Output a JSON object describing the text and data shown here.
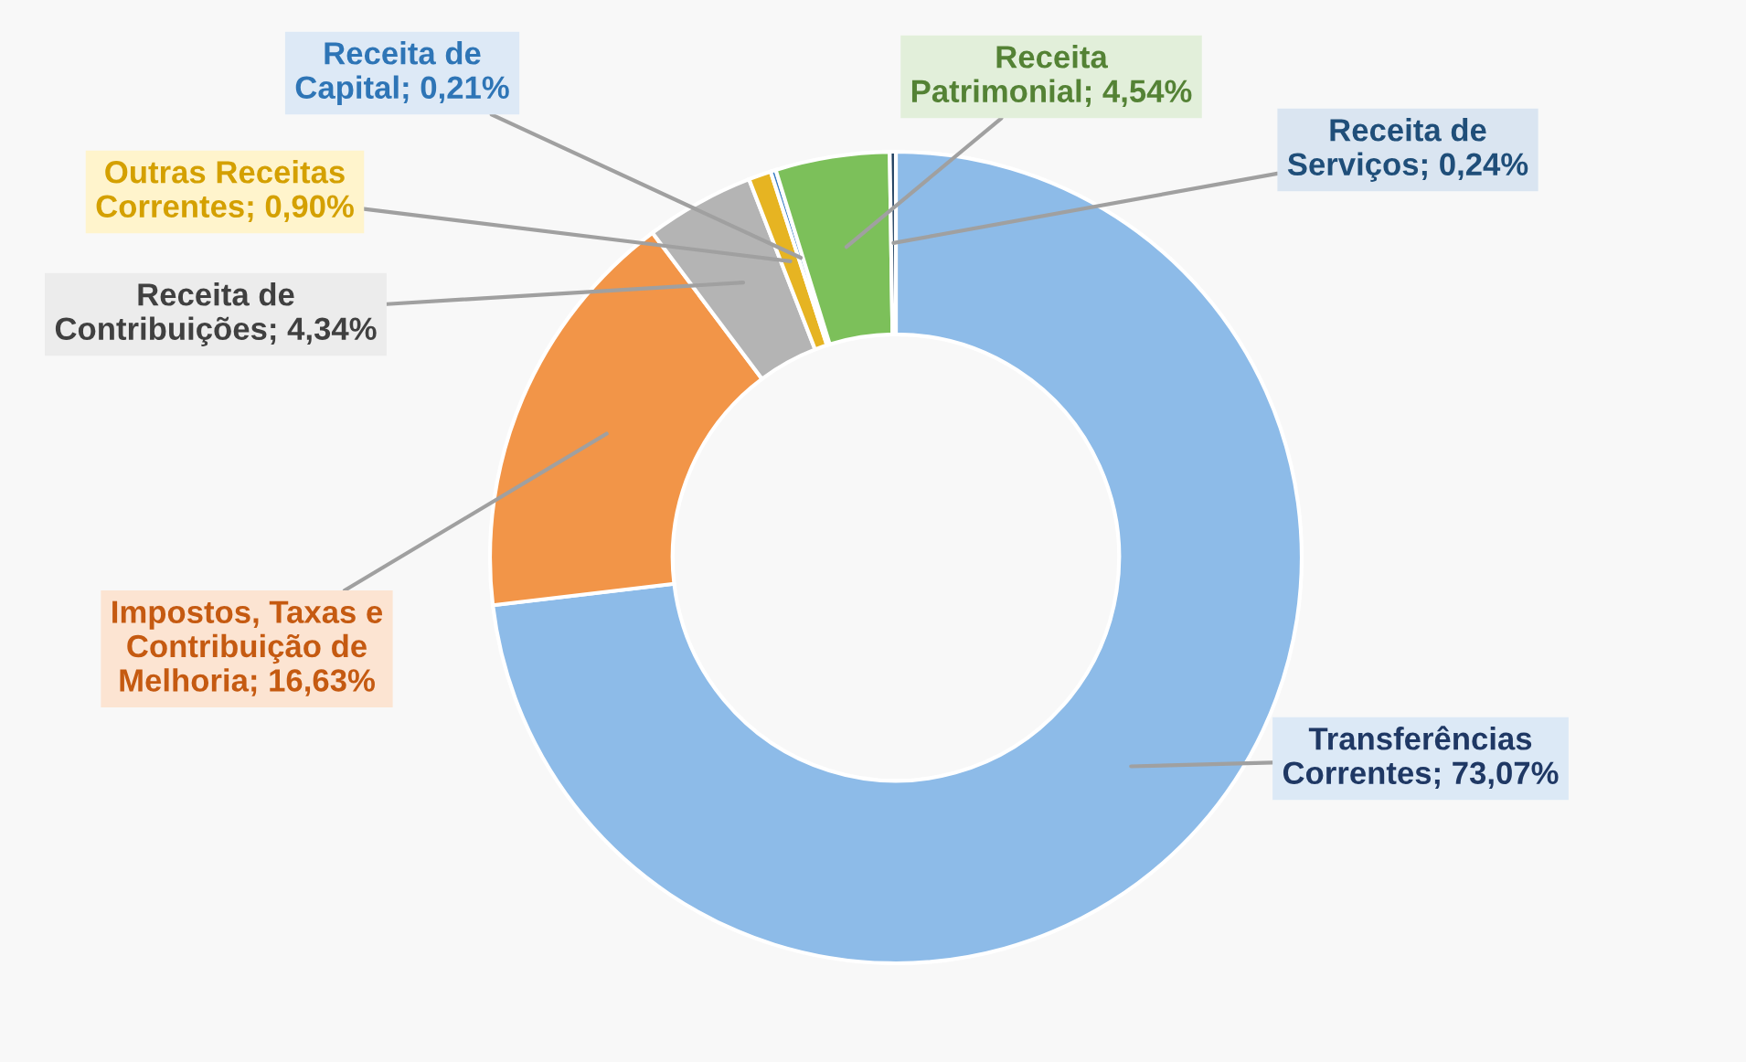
{
  "chart_data": {
    "type": "donut",
    "categories": [
      "Transferências Correntes",
      "Impostos, Taxas e Contribuição de Melhoria",
      "Receita de Contribuições",
      "Outras Receitas Correntes",
      "Receita de Capital",
      "Receita Patrimonial",
      "Receita de Serviços"
    ],
    "values": [
      73.07,
      16.63,
      4.34,
      0.9,
      0.21,
      4.54,
      0.24
    ],
    "value_labels": [
      "73,07%",
      "16,63%",
      "4,34%",
      "0,90%",
      "0,21%",
      "4,54%",
      "0,24%"
    ],
    "colors": [
      "#8dbbe8",
      "#f29548",
      "#b4b4b4",
      "#e6b422",
      "#3b7dc4",
      "#7cc05a",
      "#1f3f60"
    ],
    "legend": false
  }
}
